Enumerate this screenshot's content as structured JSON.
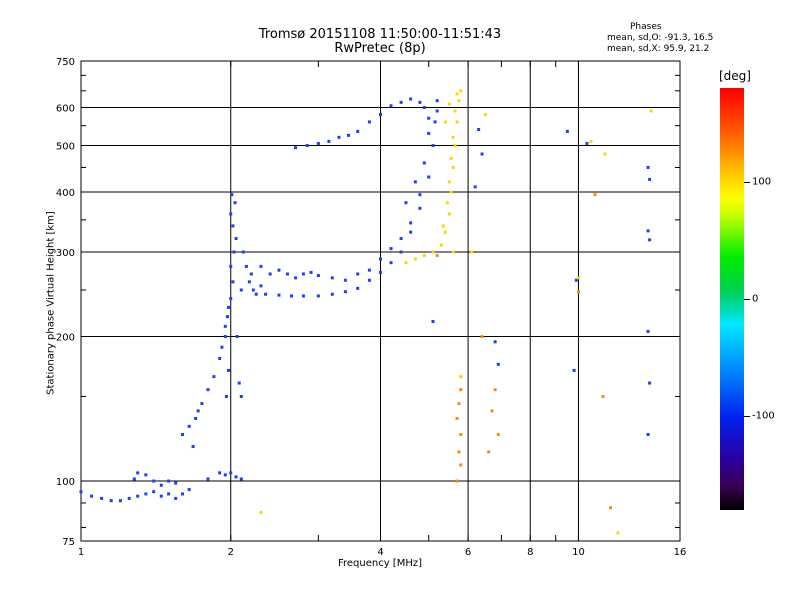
{
  "header": {
    "title_line1": "Tromsø 20151108 11:50:00-11:51:43",
    "title_line2": "RwPretec (8p)"
  },
  "phases": {
    "title": "Phases",
    "o_line": "mean, sd,O: -91.3, 16.5",
    "x_line": "mean, sd,X:  95.9, 21.2"
  },
  "colorbar": {
    "unit": "[deg]",
    "range": [
      -180,
      180
    ],
    "ticks": [
      {
        "value": 100,
        "label": "100"
      },
      {
        "value": 0,
        "label": "0"
      },
      {
        "value": -100,
        "label": "-100"
      }
    ]
  },
  "colors": {
    "o_mode": "#1e3cff",
    "x_mode": "#ffd400",
    "x_mode_alt": "#ff8800"
  },
  "chart_data": {
    "type": "scatter",
    "xscale": "log",
    "yscale": "log",
    "xlabel": "Frequency [MHz]",
    "ylabel": "Stationary phase Virtual Height [km]",
    "xlim": [
      1,
      16
    ],
    "ylim": [
      75,
      750
    ],
    "xticks": [
      {
        "value": 1,
        "label": "1"
      },
      {
        "value": 2,
        "label": "2"
      },
      {
        "value": 4,
        "label": "4"
      },
      {
        "value": 6,
        "label": "6"
      },
      {
        "value": 8,
        "label": "8"
      },
      {
        "value": 10,
        "label": "10"
      },
      {
        "value": 16,
        "label": "16"
      }
    ],
    "yticks": [
      {
        "value": 75,
        "label": "75"
      },
      {
        "value": 100,
        "label": "100"
      },
      {
        "value": 200,
        "label": "200"
      },
      {
        "value": 300,
        "label": "300"
      },
      {
        "value": 400,
        "label": "400"
      },
      {
        "value": 500,
        "label": "500"
      },
      {
        "value": 600,
        "label": "600"
      },
      {
        "value": 750,
        "label": "750"
      }
    ],
    "xgrid": [
      2,
      4,
      6,
      8,
      10
    ],
    "ygrid": [
      100,
      200,
      300,
      400,
      500,
      600
    ],
    "grid": true,
    "series": [
      {
        "mode": "O",
        "color": "#1e3cff",
        "points": [
          [
            1.0,
            95
          ],
          [
            1.05,
            93
          ],
          [
            1.1,
            92
          ],
          [
            1.15,
            91
          ],
          [
            1.2,
            91
          ],
          [
            1.25,
            92
          ],
          [
            1.3,
            93
          ],
          [
            1.35,
            94
          ],
          [
            1.4,
            95
          ],
          [
            1.45,
            93
          ],
          [
            1.5,
            94
          ],
          [
            1.55,
            92
          ],
          [
            1.6,
            94
          ],
          [
            1.65,
            96
          ],
          [
            1.3,
            104
          ],
          [
            1.35,
            103
          ],
          [
            1.28,
            101
          ],
          [
            1.4,
            100
          ],
          [
            1.45,
            98
          ],
          [
            1.5,
            100
          ],
          [
            1.55,
            99
          ],
          [
            1.8,
            101
          ],
          [
            1.9,
            104
          ],
          [
            1.95,
            103
          ],
          [
            2.0,
            104
          ],
          [
            2.05,
            102
          ],
          [
            2.1,
            101
          ],
          [
            1.6,
            125
          ],
          [
            1.65,
            130
          ],
          [
            1.7,
            135
          ],
          [
            1.72,
            140
          ],
          [
            1.68,
            118
          ],
          [
            1.75,
            145
          ],
          [
            1.8,
            155
          ],
          [
            1.85,
            165
          ],
          [
            1.9,
            180
          ],
          [
            1.95,
            200
          ],
          [
            1.97,
            220
          ],
          [
            2.0,
            240
          ],
          [
            2.02,
            260
          ],
          [
            1.92,
            190
          ],
          [
            1.95,
            210
          ],
          [
            1.98,
            230
          ],
          [
            2.0,
            280
          ],
          [
            2.03,
            300
          ],
          [
            2.05,
            320
          ],
          [
            2.02,
            340
          ],
          [
            2.0,
            360
          ],
          [
            2.04,
            380
          ],
          [
            2.01,
            395
          ],
          [
            1.98,
            170
          ],
          [
            2.08,
            160
          ],
          [
            2.1,
            150
          ],
          [
            1.96,
            150
          ],
          [
            2.06,
            200
          ],
          [
            2.1,
            250
          ],
          [
            2.12,
            300
          ],
          [
            2.15,
            280
          ],
          [
            2.18,
            260
          ],
          [
            2.2,
            270
          ],
          [
            2.22,
            250
          ],
          [
            2.25,
            245
          ],
          [
            2.3,
            255
          ],
          [
            2.3,
            280
          ],
          [
            2.4,
            270
          ],
          [
            2.5,
            275
          ],
          [
            2.6,
            270
          ],
          [
            2.7,
            265
          ],
          [
            2.8,
            270
          ],
          [
            2.9,
            272
          ],
          [
            3.0,
            268
          ],
          [
            3.2,
            265
          ],
          [
            3.4,
            262
          ],
          [
            3.6,
            270
          ],
          [
            3.8,
            275
          ],
          [
            2.35,
            245
          ],
          [
            2.5,
            244
          ],
          [
            2.65,
            243
          ],
          [
            2.8,
            243
          ],
          [
            3.0,
            243
          ],
          [
            3.2,
            245
          ],
          [
            3.4,
            248
          ],
          [
            3.6,
            252
          ],
          [
            3.8,
            262
          ],
          [
            4.0,
            272
          ],
          [
            4.2,
            285
          ],
          [
            4.4,
            300
          ],
          [
            4.6,
            330
          ],
          [
            4.8,
            370
          ],
          [
            5.0,
            430
          ],
          [
            5.1,
            500
          ],
          [
            5.15,
            560
          ],
          [
            5.2,
            620
          ],
          [
            4.0,
            290
          ],
          [
            4.2,
            305
          ],
          [
            4.4,
            320
          ],
          [
            4.6,
            345
          ],
          [
            4.8,
            395
          ],
          [
            4.9,
            460
          ],
          [
            5.0,
            530
          ],
          [
            4.5,
            380
          ],
          [
            4.7,
            420
          ],
          [
            2.7,
            495
          ],
          [
            2.85,
            500
          ],
          [
            3.0,
            505
          ],
          [
            3.15,
            510
          ],
          [
            3.3,
            520
          ],
          [
            3.45,
            525
          ],
          [
            3.6,
            535
          ],
          [
            3.8,
            560
          ],
          [
            4.0,
            580
          ],
          [
            4.2,
            605
          ],
          [
            4.4,
            615
          ],
          [
            4.6,
            625
          ],
          [
            4.8,
            615
          ],
          [
            4.9,
            600
          ],
          [
            5.2,
            590
          ],
          [
            5.0,
            570
          ],
          [
            6.3,
            540
          ],
          [
            6.4,
            480
          ],
          [
            6.2,
            410
          ],
          [
            9.5,
            535
          ],
          [
            10.4,
            505
          ],
          [
            9.9,
            262
          ],
          [
            9.8,
            170
          ],
          [
            13.8,
            450
          ],
          [
            13.9,
            425
          ],
          [
            13.8,
            332
          ],
          [
            13.9,
            318
          ],
          [
            13.8,
            205
          ],
          [
            13.9,
            160
          ],
          [
            13.8,
            125
          ],
          [
            6.8,
            195
          ],
          [
            6.9,
            175
          ],
          [
            5.1,
            215
          ]
        ]
      },
      {
        "mode": "X",
        "color": "#ffd400",
        "points": [
          [
            4.5,
            285
          ],
          [
            4.7,
            290
          ],
          [
            4.9,
            295
          ],
          [
            5.1,
            300
          ],
          [
            5.3,
            310
          ],
          [
            5.4,
            330
          ],
          [
            5.5,
            360
          ],
          [
            5.55,
            400
          ],
          [
            5.6,
            450
          ],
          [
            5.65,
            500
          ],
          [
            5.7,
            560
          ],
          [
            5.75,
            620
          ],
          [
            5.8,
            650
          ],
          [
            5.45,
            380
          ],
          [
            5.5,
            420
          ],
          [
            5.55,
            470
          ],
          [
            5.6,
            520
          ],
          [
            5.65,
            590
          ],
          [
            5.35,
            340
          ],
          [
            5.5,
            610
          ],
          [
            5.7,
            640
          ],
          [
            5.4,
            560
          ],
          [
            5.6,
            300
          ],
          [
            5.8,
            165
          ],
          [
            6.5,
            580
          ],
          [
            10.0,
            265
          ],
          [
            10.6,
            510
          ],
          [
            11.3,
            480
          ],
          [
            14.0,
            590
          ],
          [
            2.3,
            86
          ],
          [
            12.0,
            78
          ],
          [
            6.1,
            300
          ]
        ]
      },
      {
        "mode": "X",
        "color": "#ff8800",
        "points": [
          [
            5.7,
            100
          ],
          [
            5.8,
            108
          ],
          [
            5.75,
            115
          ],
          [
            5.8,
            125
          ],
          [
            5.7,
            135
          ],
          [
            5.75,
            145
          ],
          [
            5.8,
            155
          ],
          [
            6.6,
            115
          ],
          [
            6.9,
            125
          ],
          [
            6.7,
            140
          ],
          [
            6.8,
            155
          ],
          [
            6.4,
            200
          ],
          [
            10.0,
            248
          ],
          [
            11.2,
            150
          ],
          [
            10.8,
            395
          ],
          [
            11.6,
            88
          ],
          [
            5.2,
            295
          ]
        ]
      }
    ]
  }
}
